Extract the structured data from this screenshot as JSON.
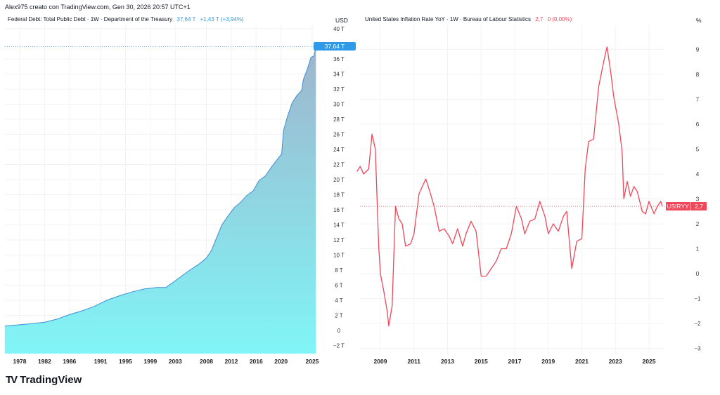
{
  "header": {
    "credit": "Alex975 creato con TradingView.com, Gen 30, 2026 20:57 UTC+1"
  },
  "footer": {
    "logo_text": "TradingView"
  },
  "chart_data": [
    {
      "type": "area",
      "legend": {
        "title": "Federal Debt: Total Public Debt · 1W · Department of the Treasury",
        "value": "37,64 T",
        "change": "+1,43 T (+3,94%)"
      },
      "unit": "USD",
      "last_value_label": "37,64 T",
      "color_line": "#3b8fd6",
      "color_fill_top": "#9fb5cc",
      "color_fill_bottom": "#80f5f7",
      "ylim": [
        -3,
        40
      ],
      "y_ticks": [
        "−2 T",
        "0",
        "2 T",
        "4 T",
        "6 T",
        "8 T",
        "10 T",
        "12 T",
        "14 T",
        "16 T",
        "18 T",
        "20 T",
        "22 T",
        "24 T",
        "26 T",
        "28 T",
        "30 T",
        "32 T",
        "34 T",
        "36 T",
        "40 T"
      ],
      "y_tick_values": [
        -2,
        0,
        2,
        4,
        6,
        8,
        10,
        12,
        14,
        16,
        18,
        20,
        22,
        24,
        26,
        28,
        30,
        32,
        34,
        36,
        40
      ],
      "x_ticks": [
        "1978",
        "1982",
        "1986",
        "1991",
        "1995",
        "1999",
        "2003",
        "2008",
        "2012",
        "2016",
        "2020",
        "2025"
      ],
      "xlim": [
        1975.6,
        2025.7
      ],
      "x": [
        1975.6,
        1978,
        1980,
        1982,
        1984,
        1986,
        1988,
        1990,
        1992,
        1994,
        1996,
        1998,
        2000,
        2001.5,
        2003,
        2005,
        2007,
        2008,
        2008.8,
        2009.5,
        2010.5,
        2011.5,
        2012.5,
        2013.5,
        2014.5,
        2015.5,
        2016.5,
        2017.5,
        2018.5,
        2019.5,
        2020.1,
        2020.4,
        2021,
        2021.8,
        2022.5,
        2023.3,
        2023.6,
        2024.2,
        2024.8,
        2025.3,
        2025.6
      ],
      "y": [
        0.6,
        0.75,
        0.9,
        1.1,
        1.5,
        2.1,
        2.6,
        3.2,
        4.0,
        4.6,
        5.1,
        5.5,
        5.7,
        5.7,
        6.6,
        7.8,
        8.9,
        9.6,
        10.6,
        12.0,
        14.0,
        15.2,
        16.3,
        17.0,
        17.9,
        18.5,
        19.9,
        20.5,
        21.7,
        22.8,
        23.4,
        26.5,
        28.3,
        30.2,
        31.1,
        31.8,
        33.3,
        34.6,
        36.2,
        36.4,
        37.64
      ]
    },
    {
      "type": "line",
      "legend": {
        "title": "United States Inflation Rate YoY · 1W · Bureau of Labour Statistics",
        "value": "2,7",
        "change": "0 (0,00%)"
      },
      "unit": "%",
      "symbol_label": "USIRYY",
      "last_value_label": "2,7",
      "color_line": "#f0475a",
      "ylim": [
        -3.2,
        9.6
      ],
      "y_ticks": [
        "−3",
        "−2",
        "−1",
        "0",
        "1",
        "2",
        "3",
        "4",
        "5",
        "6",
        "7",
        "8",
        "9"
      ],
      "y_tick_values": [
        -3,
        -2,
        -1,
        0,
        1,
        2,
        3,
        4,
        5,
        6,
        7,
        8,
        9
      ],
      "x_ticks": [
        "2009",
        "2011",
        "2013",
        "2015",
        "2017",
        "2019",
        "2021",
        "2023",
        "2025"
      ],
      "xlim": [
        2007.6,
        2026.7
      ],
      "x": [
        2007.6,
        2007.8,
        2008.0,
        2008.3,
        2008.5,
        2008.7,
        2008.9,
        2009.0,
        2009.2,
        2009.4,
        2009.5,
        2009.7,
        2009.9,
        2010.1,
        2010.3,
        2010.5,
        2010.8,
        2011.0,
        2011.3,
        2011.7,
        2011.9,
        2012.2,
        2012.5,
        2012.8,
        2013.1,
        2013.3,
        2013.6,
        2013.9,
        2014.1,
        2014.4,
        2014.7,
        2015.0,
        2015.3,
        2015.6,
        2015.9,
        2016.2,
        2016.5,
        2016.8,
        2017.1,
        2017.4,
        2017.6,
        2017.9,
        2018.2,
        2018.5,
        2018.8,
        2019.0,
        2019.3,
        2019.6,
        2019.9,
        2020.1,
        2020.4,
        2020.7,
        2021.0,
        2021.2,
        2021.4,
        2021.7,
        2022.0,
        2022.3,
        2022.5,
        2022.7,
        2022.9,
        2023.2,
        2023.4,
        2023.5,
        2023.7,
        2023.9,
        2024.1,
        2024.3,
        2024.6,
        2024.8,
        2025.0,
        2025.3,
        2025.5,
        2025.7,
        2025.8
      ],
      "y": [
        4.1,
        4.3,
        4.0,
        4.2,
        5.6,
        5.0,
        1.1,
        0.0,
        -0.7,
        -1.5,
        -2.1,
        -1.3,
        2.7,
        2.2,
        2.0,
        1.1,
        1.2,
        1.6,
        3.2,
        3.8,
        3.4,
        2.7,
        1.7,
        1.8,
        1.5,
        1.2,
        1.8,
        1.1,
        1.6,
        2.1,
        1.7,
        -0.1,
        -0.1,
        0.2,
        0.5,
        1.0,
        1.0,
        1.6,
        2.7,
        2.2,
        1.6,
        2.1,
        2.2,
        2.9,
        2.3,
        1.6,
        2.0,
        1.7,
        2.3,
        2.5,
        0.2,
        1.3,
        1.4,
        4.2,
        5.3,
        5.4,
        7.5,
        8.5,
        9.1,
        8.2,
        7.1,
        6.0,
        4.9,
        3.0,
        3.7,
        3.1,
        3.5,
        3.3,
        2.5,
        2.4,
        2.9,
        2.4,
        2.7,
        2.9,
        2.7
      ]
    }
  ]
}
